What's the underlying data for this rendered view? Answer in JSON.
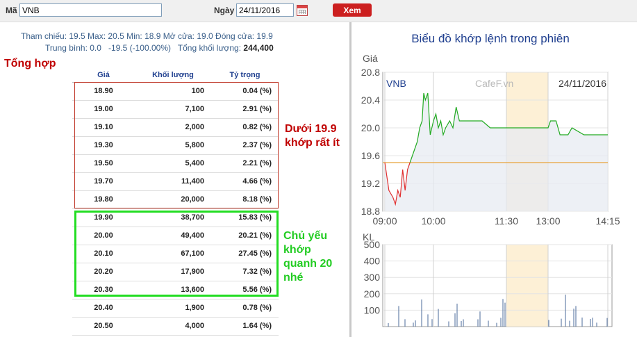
{
  "toolbar": {
    "ma_label": "Mã",
    "ma_value": "VNB",
    "ngay_label": "Ngày",
    "ngay_value": "24/11/2016",
    "xem_label": "Xem"
  },
  "summary": {
    "line1": "Tham chiếu: 19.5   Max: 20.5   Min: 18.9   Mở cửa: 19.0   Đóng cửa: 19.9",
    "line2_prefix": "Trung bình: 0.0   -19.5 (-100.00%)   Tổng khối lượng: ",
    "total_volume": "244,400"
  },
  "section_title": "Tổng hợp",
  "table": {
    "headers": [
      "Giá",
      "Khối lượng",
      "Tỷ trọng"
    ],
    "rows": [
      [
        "18.90",
        "100",
        "0.04 (%)"
      ],
      [
        "19.00",
        "7,100",
        "2.91 (%)"
      ],
      [
        "19.10",
        "2,000",
        "0.82 (%)"
      ],
      [
        "19.30",
        "5,800",
        "2.37 (%)"
      ],
      [
        "19.50",
        "5,400",
        "2.21 (%)"
      ],
      [
        "19.70",
        "11,400",
        "4.66 (%)"
      ],
      [
        "19.80",
        "20,000",
        "8.18 (%)"
      ],
      [
        "19.90",
        "38,700",
        "15.83 (%)"
      ],
      [
        "20.00",
        "49,400",
        "20.21 (%)"
      ],
      [
        "20.10",
        "67,100",
        "27.45 (%)"
      ],
      [
        "20.20",
        "17,900",
        "7.32 (%)"
      ],
      [
        "20.30",
        "13,600",
        "5.56 (%)"
      ],
      [
        "20.40",
        "1,900",
        "0.78 (%)"
      ],
      [
        "20.50",
        "4,000",
        "1.64 (%)"
      ]
    ]
  },
  "annotations": {
    "red_note": [
      "Dưới 19.9",
      "khớp rất ít"
    ],
    "green_note": [
      "Chủ yếu",
      "khớp",
      "quanh 20",
      "nhé"
    ],
    "red_color": "#c00000",
    "green_color": "#22cc22"
  },
  "chart_data": [
    {
      "type": "line",
      "title": "Biểu đồ khớp lệnh trong phiên",
      "ylabel": "Giá",
      "symbol": "VNB",
      "watermark": "CafeF.vn",
      "date": "24/11/2016",
      "ylim": [
        18.8,
        20.8
      ],
      "yticks": [
        "20.8",
        "20.4",
        "20.0",
        "19.6",
        "19.2",
        "18.8"
      ],
      "xticks": [
        "09:00",
        "10:00",
        "11:30",
        "13:00",
        "14:15"
      ],
      "reference_price": 19.5,
      "break_interval": [
        "11:30",
        "13:00"
      ],
      "series": [
        {
          "x": [
            "09:00",
            "09:05",
            "09:10",
            "09:13",
            "09:16",
            "09:19",
            "09:22",
            "09:25",
            "09:28",
            "09:31",
            "09:34",
            "09:37",
            "09:40",
            "09:43",
            "09:46",
            "09:48",
            "09:50",
            "09:53",
            "09:56",
            "10:00",
            "10:03",
            "10:06",
            "10:09",
            "10:12",
            "10:15",
            "10:20",
            "10:24",
            "10:28",
            "10:32",
            "10:40",
            "11:00",
            "11:10",
            "11:30",
            "12:00",
            "13:00",
            "13:03",
            "13:10",
            "13:15",
            "13:25",
            "13:30",
            "13:45",
            "14:15"
          ],
          "values": [
            19.5,
            19.1,
            19.0,
            18.9,
            19.1,
            19.0,
            19.4,
            19.1,
            19.4,
            19.5,
            19.6,
            19.7,
            19.8,
            20.0,
            20.1,
            20.5,
            20.4,
            20.5,
            19.9,
            20.1,
            20.2,
            20.0,
            20.1,
            19.9,
            20.0,
            20.1,
            20.0,
            20.3,
            20.1,
            20.1,
            20.1,
            20.0,
            20.0,
            20.0,
            20.0,
            20.1,
            20.1,
            19.9,
            19.9,
            20.0,
            19.9,
            19.9
          ],
          "color_below_ref": "#e03030",
          "color_above_ref": "#22aa22"
        }
      ]
    },
    {
      "type": "bar",
      "ylabel": "KL",
      "ylim": [
        0,
        500
      ],
      "yticks": [
        "500",
        "400",
        "300",
        "200",
        "100"
      ],
      "break_interval": [
        "11:30",
        "13:00"
      ],
      "bar_color": "#4a6a9a"
    }
  ]
}
